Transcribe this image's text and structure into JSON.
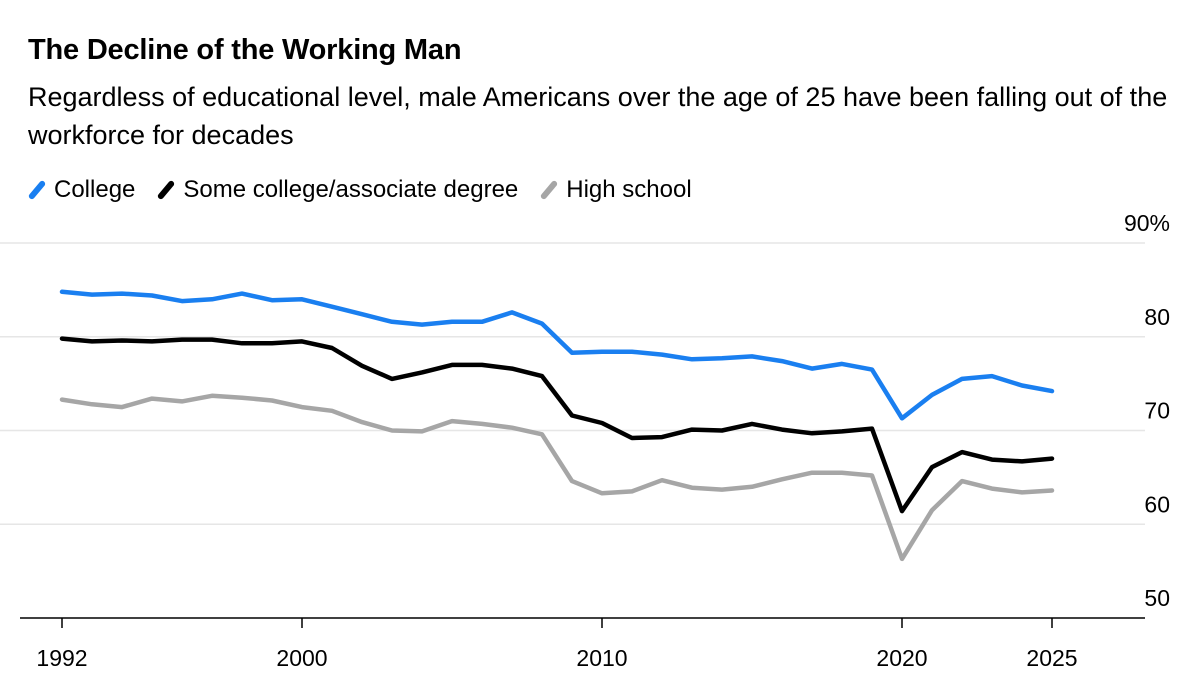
{
  "header": {
    "title": "The Decline of the Working Man",
    "subtitle": "Regardless of educational level, male Americans over the age of 25 have been falling out of the workforce for decades"
  },
  "legend": [
    {
      "label": "College",
      "color": "#1a7ff0"
    },
    {
      "label": "Some college/associate degree",
      "color": "#000000"
    },
    {
      "label": "High school",
      "color": "#a6a6a6"
    }
  ],
  "chart_data": {
    "type": "line",
    "title": "The Decline of the Working Man",
    "ylabel": "",
    "xlabel": "",
    "ylim": [
      50,
      90
    ],
    "xlim": [
      1992,
      2027
    ],
    "y_ticks": [
      50,
      60,
      70,
      80,
      90
    ],
    "y_tick_labels": [
      "50",
      "60",
      "70",
      "80",
      "90%"
    ],
    "x_ticks": [
      1992,
      2000,
      2010,
      2020,
      2025
    ],
    "x_tick_labels": [
      "1992",
      "2000",
      "2010",
      "2020",
      "2025"
    ],
    "grid": true,
    "series": [
      {
        "name": "College",
        "color": "#1a7ff0",
        "x": [
          1992,
          1993,
          1994,
          1995,
          1996,
          1997,
          1998,
          1999,
          2000,
          2001,
          2002,
          2003,
          2004,
          2005,
          2006,
          2007,
          2008,
          2009,
          2010,
          2011,
          2012,
          2013,
          2014,
          2015,
          2016,
          2017,
          2018,
          2019,
          2020,
          2021,
          2022,
          2023,
          2024,
          2025
        ],
        "y": [
          84.8,
          84.5,
          84.6,
          84.4,
          83.8,
          84.0,
          84.6,
          83.9,
          84.0,
          83.2,
          82.4,
          81.6,
          81.3,
          81.6,
          81.6,
          82.6,
          81.4,
          78.3,
          78.4,
          78.4,
          78.1,
          77.6,
          77.7,
          77.9,
          77.4,
          76.6,
          77.1,
          76.5,
          71.3,
          73.8,
          75.5,
          75.8,
          74.8,
          74.2
        ]
      },
      {
        "name": "Some college/associate degree",
        "color": "#000000",
        "x": [
          1992,
          1993,
          1994,
          1995,
          1996,
          1997,
          1998,
          1999,
          2000,
          2001,
          2002,
          2003,
          2004,
          2005,
          2006,
          2007,
          2008,
          2009,
          2010,
          2011,
          2012,
          2013,
          2014,
          2015,
          2016,
          2017,
          2018,
          2019,
          2020,
          2021,
          2022,
          2023,
          2024,
          2025
        ],
        "y": [
          79.8,
          79.5,
          79.6,
          79.5,
          79.7,
          79.7,
          79.3,
          79.3,
          79.5,
          78.8,
          76.9,
          75.5,
          76.2,
          77.0,
          77.0,
          76.6,
          75.8,
          71.6,
          70.8,
          69.2,
          69.3,
          70.1,
          70.0,
          70.7,
          70.1,
          69.7,
          69.9,
          70.2,
          61.4,
          66.1,
          67.7,
          66.9,
          66.7,
          67.0
        ]
      },
      {
        "name": "High school",
        "color": "#a6a6a6",
        "x": [
          1992,
          1993,
          1994,
          1995,
          1996,
          1997,
          1998,
          1999,
          2000,
          2001,
          2002,
          2003,
          2004,
          2005,
          2006,
          2007,
          2008,
          2009,
          2010,
          2011,
          2012,
          2013,
          2014,
          2015,
          2016,
          2017,
          2018,
          2019,
          2020,
          2021,
          2022,
          2023,
          2024,
          2025
        ],
        "y": [
          73.3,
          72.8,
          72.5,
          73.4,
          73.1,
          73.7,
          73.5,
          73.2,
          72.5,
          72.1,
          70.9,
          70.0,
          69.9,
          71.0,
          70.7,
          70.3,
          69.6,
          64.6,
          63.3,
          63.5,
          64.7,
          63.9,
          63.7,
          64.0,
          64.8,
          65.5,
          65.5,
          65.2,
          56.3,
          61.5,
          64.6,
          63.8,
          63.4,
          63.6
        ]
      }
    ]
  }
}
